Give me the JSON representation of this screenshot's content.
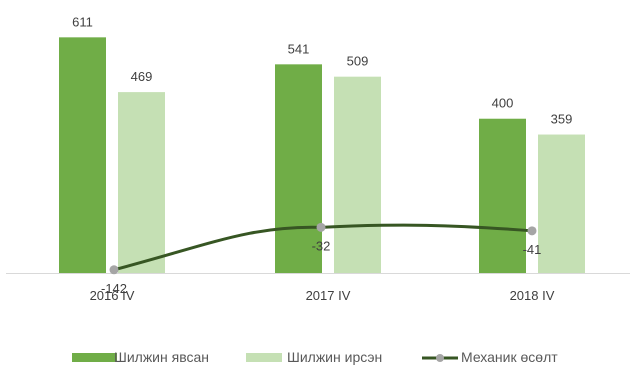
{
  "chart_data": {
    "type": "bar",
    "categories": [
      "2016 IV",
      "2017 IV",
      "2018 IV"
    ],
    "series": [
      {
        "name": "Шилжин явсан",
        "type": "bar",
        "values": [
          611,
          541,
          400
        ],
        "color": "#70ad47"
      },
      {
        "name": "Шилжин ирсэн",
        "type": "bar",
        "values": [
          469,
          509,
          359
        ],
        "color": "#c5e0b4"
      },
      {
        "name": "Механик өсөлт",
        "type": "line",
        "values": [
          -142,
          -32,
          -41
        ],
        "color": "#375623",
        "marker_color": "#a5a5a5"
      }
    ],
    "ylim": [
      -200,
      700
    ],
    "grid": false,
    "legend": "bottom"
  }
}
